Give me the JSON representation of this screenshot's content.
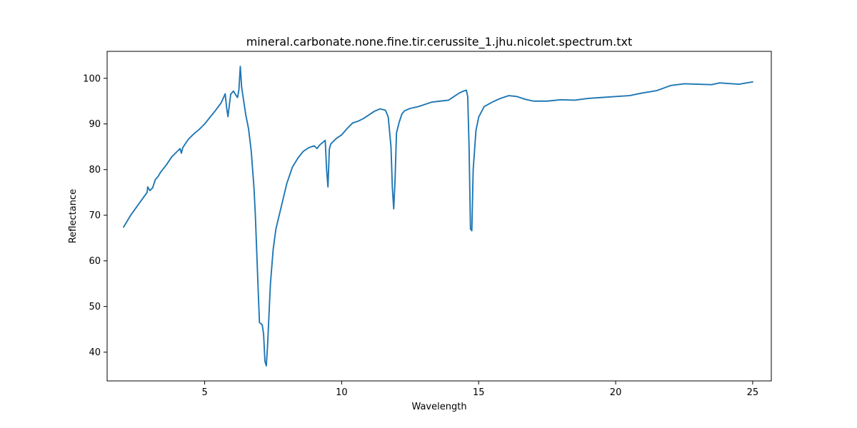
{
  "chart_data": {
    "type": "line",
    "title": "mineral.carbonate.none.fine.tir.cerussite_1.jhu.nicolet.spectrum.txt",
    "xlabel": "Wavelength",
    "ylabel": "Reflectance",
    "xlim": [
      1.44,
      25.68
    ],
    "ylim": [
      33.7,
      105.9
    ],
    "xticks": [
      5,
      10,
      15,
      20,
      25
    ],
    "yticks": [
      40,
      50,
      60,
      70,
      80,
      90,
      100
    ],
    "grid": false,
    "series": [
      {
        "color": "#1f77b4",
        "x": [
          2.04,
          2.3,
          2.6,
          2.9,
          2.92,
          3.0,
          3.1,
          3.2,
          3.3,
          3.4,
          3.6,
          3.8,
          4.0,
          4.1,
          4.15,
          4.2,
          4.4,
          4.6,
          4.8,
          5.0,
          5.2,
          5.4,
          5.6,
          5.75,
          5.8,
          5.85,
          5.95,
          6.05,
          6.15,
          6.2,
          6.25,
          6.3,
          6.35,
          6.4,
          6.5,
          6.6,
          6.7,
          6.8,
          6.85,
          6.9,
          6.95,
          7.0,
          7.1,
          7.15,
          7.2,
          7.25,
          7.3,
          7.4,
          7.5,
          7.6,
          7.8,
          8.0,
          8.2,
          8.4,
          8.6,
          8.8,
          9.0,
          9.1,
          9.2,
          9.4,
          9.45,
          9.5,
          9.55,
          9.6,
          9.8,
          10.0,
          10.2,
          10.4,
          10.6,
          10.8,
          11.0,
          11.2,
          11.4,
          11.6,
          11.7,
          11.8,
          11.85,
          11.9,
          11.95,
          12.0,
          12.1,
          12.2,
          12.3,
          12.5,
          12.8,
          13.0,
          13.3,
          13.6,
          13.9,
          14.1,
          14.3,
          14.45,
          14.55,
          14.6,
          14.65,
          14.7,
          14.75,
          14.8,
          14.9,
          15.0,
          15.2,
          15.5,
          15.8,
          16.1,
          16.4,
          16.7,
          17.0,
          17.5,
          18.0,
          18.5,
          19.0,
          19.5,
          20.0,
          20.5,
          21.0,
          21.5,
          22.0,
          22.5,
          23.0,
          23.5,
          23.8,
          24.0,
          24.5,
          25.0
        ],
        "y": [
          67.4,
          70.0,
          72.5,
          75.0,
          76.2,
          75.4,
          76.0,
          77.8,
          78.5,
          79.5,
          81.0,
          82.8,
          84.0,
          84.6,
          83.6,
          84.8,
          86.6,
          87.8,
          88.8,
          90.0,
          91.5,
          93.0,
          94.6,
          96.6,
          93.6,
          91.6,
          96.5,
          97.2,
          96.2,
          95.8,
          97.5,
          102.6,
          98.0,
          96.0,
          92.0,
          89.0,
          84.0,
          76.0,
          70.0,
          62.0,
          54.0,
          46.5,
          46.0,
          44.0,
          38.0,
          37.0,
          42.0,
          55.0,
          62.5,
          67.0,
          72.0,
          77.0,
          80.5,
          82.5,
          84.0,
          84.8,
          85.2,
          84.6,
          85.4,
          86.4,
          80.0,
          76.2,
          84.5,
          85.6,
          86.8,
          87.6,
          89.0,
          90.2,
          90.6,
          91.2,
          92.0,
          92.8,
          93.3,
          93.0,
          91.5,
          85.0,
          76.0,
          71.4,
          78.0,
          88.0,
          90.4,
          92.2,
          92.9,
          93.4,
          93.8,
          94.2,
          94.8,
          95.0,
          95.2,
          96.0,
          96.8,
          97.2,
          97.4,
          96.0,
          85.0,
          67.0,
          66.6,
          80.0,
          88.5,
          91.5,
          93.8,
          94.8,
          95.6,
          96.2,
          96.0,
          95.4,
          95.0,
          95.0,
          95.3,
          95.2,
          95.6,
          95.8,
          96.0,
          96.2,
          96.8,
          97.3,
          98.4,
          98.8,
          98.7,
          98.6,
          99.0,
          98.9,
          98.7,
          99.2
        ]
      }
    ]
  }
}
